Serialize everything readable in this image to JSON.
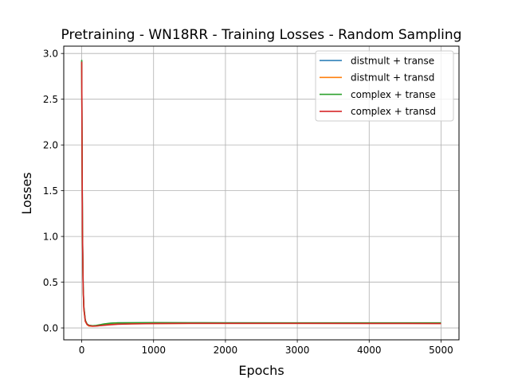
{
  "chart_data": {
    "type": "line",
    "title": "Pretraining - WN18RR - Training Losses - Random Sampling",
    "xlabel": "Epochs",
    "ylabel": "Losses",
    "xlim": [
      -250,
      5250
    ],
    "ylim": [
      -0.13,
      3.08
    ],
    "xticks": [
      0,
      1000,
      2000,
      3000,
      4000,
      5000
    ],
    "xtick_labels": [
      "0",
      "1000",
      "2000",
      "3000",
      "4000",
      "5000"
    ],
    "yticks": [
      0.0,
      0.5,
      1.0,
      1.5,
      2.0,
      2.5,
      3.0
    ],
    "ytick_labels": [
      "0.0",
      "0.5",
      "1.0",
      "1.5",
      "2.0",
      "2.5",
      "3.0"
    ],
    "grid": true,
    "legend_position": "top-right",
    "series": [
      {
        "name": "distmult + transe",
        "color": "#1f77b4",
        "x": [
          0,
          5,
          10,
          20,
          30,
          50,
          75,
          100,
          150,
          200,
          300,
          400,
          500,
          700,
          1000,
          1500,
          2000,
          3000,
          4000,
          5000
        ],
        "y": [
          2.92,
          1.9,
          1.1,
          0.45,
          0.22,
          0.08,
          0.04,
          0.028,
          0.022,
          0.025,
          0.04,
          0.05,
          0.055,
          0.056,
          0.057,
          0.055,
          0.055,
          0.054,
          0.054,
          0.054
        ]
      },
      {
        "name": "distmult + transd",
        "color": "#ff7f0e",
        "x": [
          0,
          5,
          10,
          20,
          30,
          50,
          75,
          100,
          150,
          200,
          300,
          400,
          500,
          700,
          1000,
          1500,
          2000,
          3000,
          4000,
          5000
        ],
        "y": [
          2.9,
          1.85,
          1.05,
          0.42,
          0.2,
          0.07,
          0.035,
          0.022,
          0.018,
          0.02,
          0.03,
          0.038,
          0.042,
          0.045,
          0.048,
          0.05,
          0.05,
          0.05,
          0.05,
          0.05
        ]
      },
      {
        "name": "complex + transe",
        "color": "#2ca02c",
        "x": [
          0,
          5,
          10,
          20,
          30,
          50,
          75,
          100,
          150,
          200,
          300,
          400,
          500,
          700,
          1000,
          1500,
          2000,
          3000,
          4000,
          5000
        ],
        "y": [
          2.93,
          1.92,
          1.12,
          0.46,
          0.23,
          0.085,
          0.042,
          0.03,
          0.024,
          0.027,
          0.042,
          0.052,
          0.056,
          0.057,
          0.058,
          0.057,
          0.056,
          0.056,
          0.056,
          0.056
        ]
      },
      {
        "name": "complex + transd",
        "color": "#d62728",
        "x": [
          0,
          5,
          10,
          20,
          30,
          50,
          75,
          100,
          150,
          200,
          300,
          400,
          500,
          700,
          1000,
          1500,
          2000,
          3000,
          4000,
          5000
        ],
        "y": [
          2.91,
          1.88,
          1.08,
          0.44,
          0.21,
          0.075,
          0.038,
          0.025,
          0.02,
          0.021,
          0.028,
          0.035,
          0.04,
          0.044,
          0.048,
          0.05,
          0.05,
          0.05,
          0.049,
          0.048
        ]
      }
    ]
  }
}
